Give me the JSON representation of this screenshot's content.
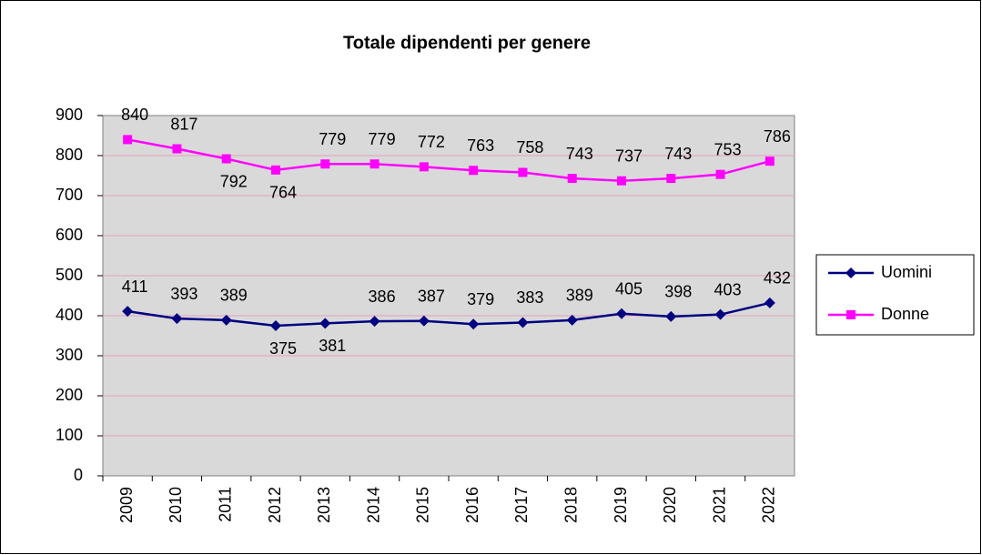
{
  "chart_data": {
    "type": "line",
    "title": "Totale dipendenti per genere",
    "categories": [
      "2009",
      "2010",
      "2011",
      "2012",
      "2013",
      "2014",
      "2015",
      "2016",
      "2017",
      "2018",
      "2019",
      "2020",
      "2021",
      "2022"
    ],
    "series": [
      {
        "name": "Uomini",
        "color": "#000080",
        "marker": "diamond",
        "values": [
          411,
          393,
          389,
          375,
          381,
          386,
          387,
          379,
          383,
          389,
          405,
          398,
          403,
          432
        ]
      },
      {
        "name": "Donne",
        "color": "#ff00ff",
        "marker": "square",
        "values": [
          840,
          817,
          792,
          764,
          779,
          779,
          772,
          763,
          758,
          743,
          737,
          743,
          753,
          786
        ]
      }
    ],
    "ylim": [
      0,
      900
    ],
    "yticks": [
      0,
      100,
      200,
      300,
      400,
      500,
      600,
      700,
      800,
      900
    ],
    "grid": true,
    "legend": "right"
  }
}
